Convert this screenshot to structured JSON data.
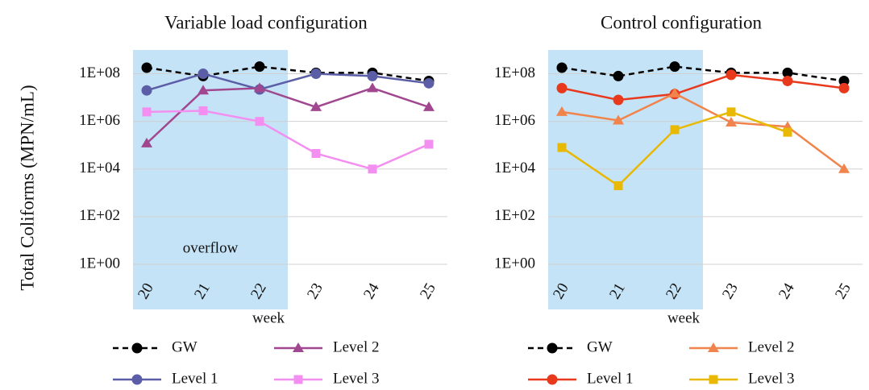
{
  "chart_data": [
    {
      "type": "line",
      "title": "Variable load configuration",
      "ylabel": "Total Coliforms (MPN/mL)",
      "xlabel": "week",
      "log_scale": true,
      "grid": true,
      "categories": [
        "20",
        "21",
        "22",
        "23",
        "24",
        "25"
      ],
      "ylim": [
        1,
        1000000000
      ],
      "yticks": [
        {
          "value": 1,
          "label": "1E+00"
        },
        {
          "value": 100,
          "label": "1E+02"
        },
        {
          "value": 10000,
          "label": "1E+04"
        },
        {
          "value": 1000000,
          "label": "1E+06"
        },
        {
          "value": 100000000,
          "label": "1E+08"
        }
      ],
      "shaded": {
        "from": "20",
        "to": "22",
        "label": "overflow",
        "color": "#c5e3f6"
      },
      "series": [
        {
          "name": "GW",
          "color": "#000000",
          "marker": "circle",
          "dashed": true,
          "values": [
            180000000,
            80000000,
            200000000,
            110000000,
            110000000,
            50000000
          ]
        },
        {
          "name": "Level 1",
          "color": "#5b5ea6",
          "marker": "circle",
          "dashed": false,
          "values": [
            20000000,
            100000000,
            22000000,
            100000000,
            80000000,
            40000000
          ]
        },
        {
          "name": "Level 2",
          "color": "#a0478f",
          "marker": "triangle",
          "dashed": false,
          "values": [
            120000,
            20000000,
            25000000,
            4000000,
            25000000,
            4000000
          ]
        },
        {
          "name": "Level 3",
          "color": "#f38ff0",
          "marker": "square",
          "dashed": false,
          "values": [
            2500000,
            2800000,
            1000000,
            45000,
            10000,
            110000
          ]
        }
      ]
    },
    {
      "type": "line",
      "title": "Control configuration",
      "xlabel": "week",
      "log_scale": true,
      "grid": true,
      "categories": [
        "20",
        "21",
        "22",
        "23",
        "24",
        "25"
      ],
      "ylim": [
        1,
        1000000000
      ],
      "yticks": [
        {
          "value": 1,
          "label": "1E+00"
        },
        {
          "value": 100,
          "label": "1E+02"
        },
        {
          "value": 10000,
          "label": "1E+04"
        },
        {
          "value": 1000000,
          "label": "1E+06"
        },
        {
          "value": 100000000,
          "label": "1E+08"
        }
      ],
      "shaded": {
        "from": "20",
        "to": "22",
        "color": "#c5e3f6"
      },
      "series": [
        {
          "name": "GW",
          "color": "#000000",
          "marker": "circle",
          "dashed": true,
          "values": [
            180000000,
            80000000,
            200000000,
            110000000,
            110000000,
            50000000
          ]
        },
        {
          "name": "Level 1",
          "color": "#e8391d",
          "marker": "circle",
          "dashed": false,
          "values": [
            25000000,
            8000000,
            14000000,
            90000000,
            50000000,
            25000000
          ]
        },
        {
          "name": "Level 2",
          "color": "#f0844c",
          "marker": "triangle",
          "dashed": false,
          "values": [
            2500000,
            1100000,
            15000000,
            900000,
            600000,
            10000
          ]
        },
        {
          "name": "Level 3",
          "color": "#e9b800",
          "marker": "square",
          "dashed": false,
          "values": [
            80000,
            2000,
            450000,
            2500000,
            350000,
            null
          ]
        }
      ]
    }
  ]
}
